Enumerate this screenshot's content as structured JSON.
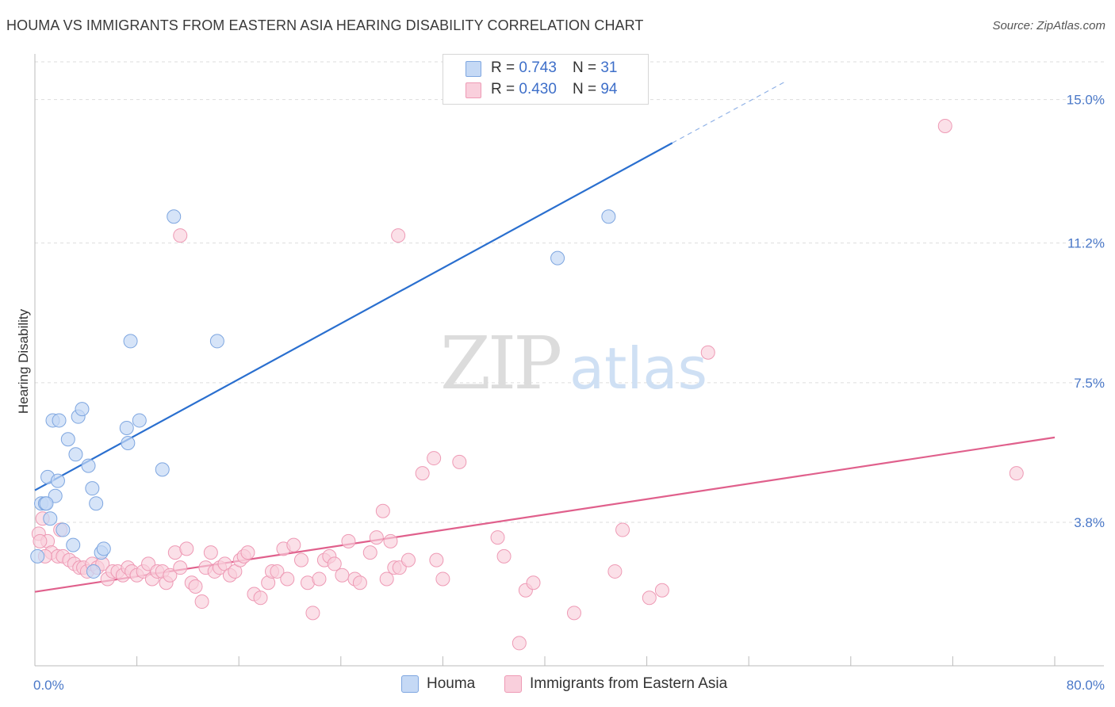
{
  "header": {
    "title": "HOUMA VS IMMIGRANTS FROM EASTERN ASIA HEARING DISABILITY CORRELATION CHART",
    "source": "Source: ZipAtlas.com"
  },
  "watermark": {
    "zip": "ZIP",
    "atlas": "atlas"
  },
  "legend": {
    "rows": [
      {
        "r_label": "R =",
        "r_value": "0.743",
        "n_label": "N =",
        "n_value": "31",
        "color": "#a9c6f0"
      },
      {
        "r_label": "R =",
        "r_value": "0.430",
        "n_label": "N =",
        "n_value": "94",
        "color": "#f7b8cc"
      }
    ]
  },
  "colors": {
    "houma_fill": "#c5d9f5",
    "houma_stroke": "#7ea6e0",
    "houma_line": "#2a6fcf",
    "asia_fill": "#f9cfdc",
    "asia_stroke": "#ee9ab5",
    "asia_line": "#e0608c",
    "tick": "#4a78c8",
    "grid": "#dddddd"
  },
  "chart_data": {
    "type": "scatter",
    "title": "HOUMA VS IMMIGRANTS FROM EASTERN ASIA HEARING DISABILITY CORRELATION CHART",
    "xlabel": "",
    "ylabel": "Hearing Disability",
    "xlim": [
      0,
      80
    ],
    "ylim": [
      0,
      16
    ],
    "x_tick_labels": [
      "0.0%",
      "80.0%"
    ],
    "y_ticks": [
      3.8,
      7.5,
      11.2,
      15.0
    ],
    "y_tick_labels": [
      "3.8%",
      "7.5%",
      "11.2%",
      "15.0%"
    ],
    "grid": true,
    "series": [
      {
        "name": "Houma",
        "r": 0.743,
        "n": 31,
        "points": [
          [
            0.2,
            2.9
          ],
          [
            0.5,
            4.3
          ],
          [
            0.8,
            4.3
          ],
          [
            1.0,
            5.0
          ],
          [
            1.2,
            3.9
          ],
          [
            1.4,
            6.5
          ],
          [
            1.6,
            4.5
          ],
          [
            1.8,
            4.9
          ],
          [
            1.9,
            6.5
          ],
          [
            2.2,
            3.6
          ],
          [
            2.6,
            6.0
          ],
          [
            3.0,
            3.2
          ],
          [
            3.2,
            5.6
          ],
          [
            3.4,
            6.6
          ],
          [
            3.7,
            6.8
          ],
          [
            4.2,
            5.3
          ],
          [
            4.6,
            2.5
          ],
          [
            4.5,
            4.7
          ],
          [
            4.8,
            4.3
          ],
          [
            5.2,
            3.0
          ],
          [
            5.4,
            3.1
          ],
          [
            7.2,
            6.3
          ],
          [
            7.3,
            5.9
          ],
          [
            7.5,
            8.6
          ],
          [
            8.2,
            6.5
          ],
          [
            10.0,
            5.2
          ],
          [
            10.9,
            11.9
          ],
          [
            14.3,
            8.6
          ],
          [
            0.9,
            4.3
          ],
          [
            41.0,
            10.8
          ],
          [
            45.0,
            11.9
          ]
        ],
        "trend": {
          "x0": 0,
          "y0": 4.65,
          "x1": 50,
          "y1": 13.85,
          "dash_x1": 59,
          "dash_y1": 15.5
        }
      },
      {
        "name": "Immigrants from Eastern Asia",
        "r": 0.43,
        "n": 94,
        "points": [
          [
            0.3,
            3.5
          ],
          [
            0.6,
            3.9
          ],
          [
            1.0,
            3.3
          ],
          [
            1.3,
            3.0
          ],
          [
            1.8,
            2.9
          ],
          [
            2.2,
            2.9
          ],
          [
            2.7,
            2.8
          ],
          [
            3.1,
            2.7
          ],
          [
            3.5,
            2.6
          ],
          [
            3.8,
            2.6
          ],
          [
            4.1,
            2.5
          ],
          [
            4.5,
            2.7
          ],
          [
            4.9,
            2.6
          ],
          [
            5.3,
            2.7
          ],
          [
            5.7,
            2.3
          ],
          [
            6.1,
            2.5
          ],
          [
            6.5,
            2.5
          ],
          [
            6.9,
            2.4
          ],
          [
            7.3,
            2.6
          ],
          [
            7.6,
            2.5
          ],
          [
            8.0,
            2.4
          ],
          [
            8.5,
            2.5
          ],
          [
            8.9,
            2.7
          ],
          [
            9.2,
            2.3
          ],
          [
            9.6,
            2.5
          ],
          [
            10.0,
            2.5
          ],
          [
            10.3,
            2.2
          ],
          [
            10.6,
            2.4
          ],
          [
            11.0,
            3.0
          ],
          [
            11.4,
            2.6
          ],
          [
            11.9,
            3.1
          ],
          [
            12.3,
            2.2
          ],
          [
            12.6,
            2.1
          ],
          [
            13.1,
            1.7
          ],
          [
            13.4,
            2.6
          ],
          [
            13.8,
            3.0
          ],
          [
            14.1,
            2.5
          ],
          [
            14.5,
            2.6
          ],
          [
            14.9,
            2.7
          ],
          [
            15.3,
            2.4
          ],
          [
            15.7,
            2.5
          ],
          [
            16.1,
            2.8
          ],
          [
            16.4,
            2.9
          ],
          [
            16.7,
            3.0
          ],
          [
            17.2,
            1.9
          ],
          [
            17.7,
            1.8
          ],
          [
            18.3,
            2.2
          ],
          [
            18.6,
            2.5
          ],
          [
            19.0,
            2.5
          ],
          [
            19.5,
            3.1
          ],
          [
            19.8,
            2.3
          ],
          [
            20.3,
            3.2
          ],
          [
            20.9,
            2.8
          ],
          [
            21.4,
            2.2
          ],
          [
            21.8,
            1.4
          ],
          [
            22.3,
            2.3
          ],
          [
            22.7,
            2.8
          ],
          [
            23.1,
            2.9
          ],
          [
            23.5,
            2.7
          ],
          [
            24.1,
            2.4
          ],
          [
            24.6,
            3.3
          ],
          [
            25.1,
            2.3
          ],
          [
            25.5,
            2.2
          ],
          [
            26.3,
            3.0
          ],
          [
            26.8,
            3.4
          ],
          [
            27.3,
            4.1
          ],
          [
            27.6,
            2.3
          ],
          [
            27.9,
            3.3
          ],
          [
            28.2,
            2.6
          ],
          [
            28.6,
            2.6
          ],
          [
            29.3,
            2.8
          ],
          [
            30.4,
            5.1
          ],
          [
            31.3,
            5.5
          ],
          [
            31.5,
            2.8
          ],
          [
            32.0,
            2.3
          ],
          [
            33.3,
            5.4
          ],
          [
            36.3,
            3.4
          ],
          [
            36.8,
            2.9
          ],
          [
            38.0,
            0.6
          ],
          [
            38.5,
            2.0
          ],
          [
            39.1,
            2.2
          ],
          [
            42.3,
            1.4
          ],
          [
            45.5,
            2.5
          ],
          [
            46.1,
            3.6
          ],
          [
            48.2,
            1.8
          ],
          [
            49.2,
            2.0
          ],
          [
            52.8,
            8.3
          ],
          [
            71.4,
            14.3
          ],
          [
            77.0,
            5.1
          ],
          [
            11.4,
            11.4
          ],
          [
            28.5,
            11.4
          ],
          [
            2.0,
            3.6
          ],
          [
            0.8,
            2.9
          ],
          [
            0.4,
            3.3
          ]
        ],
        "trend": {
          "x0": 0,
          "y0": 1.96,
          "x1": 80,
          "y1": 6.05
        }
      }
    ]
  }
}
